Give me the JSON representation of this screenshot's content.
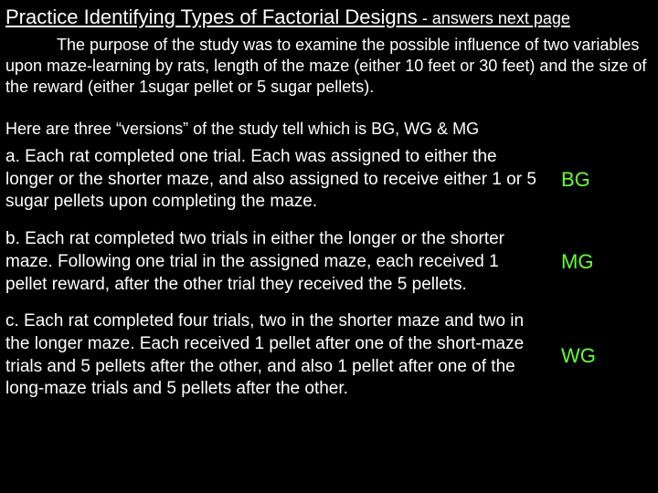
{
  "title": {
    "main": "Practice Identifying Types of Factorial Designs",
    "suffix": " - answers next page"
  },
  "purpose": "The purpose of the study was to examine the possible influence of two variables upon maze-learning by rats, length of the maze (either 10 feet or 30 feet) and the size of the reward (either 1sugar pellet or 5 sugar pellets).",
  "intro": "Here are three “versions” of the study tell which is BG, WG & MG",
  "items": {
    "a": {
      "text": "a.  Each rat completed one trial.  Each was assigned to either the longer or the shorter maze, and also assigned to receive either 1 or 5 sugar pellets upon completing the maze.",
      "answer": "BG"
    },
    "b": {
      "text": "b.  Each rat completed two trials in either the longer or the shorter maze.  Following one trial in the assigned maze, each received 1 pellet reward, after the other trial they received the 5 pellets.",
      "answer": "MG"
    },
    "c": {
      "text": "c.  Each rat completed four trials, two in the shorter maze and two in the longer maze.  Each received 1 pellet after one of the short-maze trials and 5 pellets after the other, and also 1 pellet after one of the long-maze trials and 5 pellets after the other.",
      "answer": "WG"
    }
  },
  "colors": {
    "background": "#000000",
    "text": "#ffffff",
    "answer": "#66ff33"
  }
}
